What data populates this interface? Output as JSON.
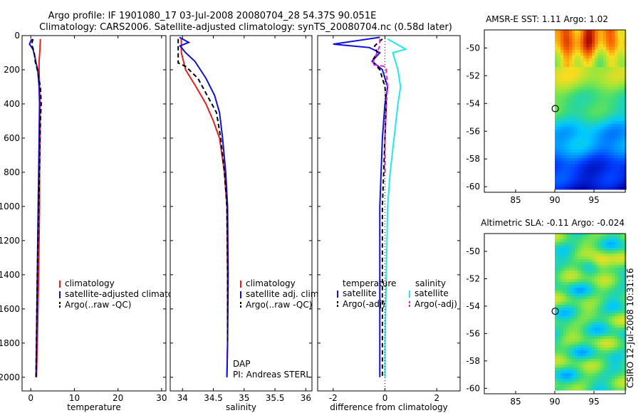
{
  "header": {
    "title_line1": "Argo profile: IF 1901080_17 03-Jul-2008 20080704_28 54.37S 90.051E",
    "title_line2": "Climatology: CARS2006. Satellite-adjusted climatology: synTS_20080704.nc (0.58d later)"
  },
  "colors": {
    "climatology": "#e8201c",
    "satellite": "#1010d8",
    "argo": "#000000",
    "cyan": "#22e8e8",
    "magenta": "#e020e0"
  },
  "chart_data": [
    {
      "id": "temperature",
      "type": "line",
      "xlabel": "temperature",
      "ylabel": "",
      "xlim": [
        -2,
        31
      ],
      "ylim": [
        0,
        2080
      ],
      "y_reversed": true,
      "xticks": [
        "0",
        "10",
        "20",
        "30"
      ],
      "xtick_values": [
        0,
        10,
        20,
        30
      ],
      "yticks": [
        "0",
        "200",
        "400",
        "600",
        "800",
        "1000",
        "1200",
        "1400",
        "1600",
        "1800",
        "2000"
      ],
      "ytick_values": [
        0,
        200,
        400,
        600,
        800,
        1000,
        1200,
        1400,
        1600,
        1800,
        2000
      ],
      "legend": [
        "climatology",
        "satellite-adjusted climatology",
        "Argo(..raw -QC)"
      ],
      "series": [
        {
          "name": "climatology",
          "color_key": "climatology",
          "dash": "",
          "points": [
            [
              2.2,
              20
            ],
            [
              2.1,
              80
            ],
            [
              1.9,
              150
            ],
            [
              1.9,
              200
            ],
            [
              2.0,
              300
            ],
            [
              2.1,
              400
            ],
            [
              2.1,
              600
            ],
            [
              2.0,
              800
            ],
            [
              2.0,
              1000
            ],
            [
              1.8,
              1400
            ],
            [
              1.5,
              1800
            ],
            [
              1.3,
              2000
            ]
          ]
        },
        {
          "name": "satellite-adjusted climatology",
          "color_key": "satellite",
          "dash": "",
          "points": [
            [
              0.2,
              20
            ],
            [
              -0.3,
              50
            ],
            [
              0.5,
              80
            ],
            [
              0.9,
              120
            ],
            [
              1.2,
              160
            ],
            [
              1.6,
              200
            ],
            [
              1.9,
              300
            ],
            [
              2.0,
              400
            ],
            [
              1.9,
              600
            ],
            [
              1.8,
              800
            ],
            [
              1.7,
              1000
            ],
            [
              1.5,
              1400
            ],
            [
              1.3,
              1800
            ],
            [
              1.2,
              2000
            ]
          ]
        },
        {
          "name": "Argo(..raw -QC)",
          "color_key": "argo",
          "dash": "6,4",
          "points": [
            [
              0.5,
              20
            ],
            [
              0.2,
              50
            ],
            [
              0.8,
              100
            ],
            [
              1.0,
              150
            ],
            [
              1.5,
              200
            ],
            [
              2.2,
              300
            ],
            [
              2.4,
              400
            ],
            [
              2.2,
              500
            ],
            [
              2.0,
              800
            ],
            [
              1.8,
              1000
            ],
            [
              1.5,
              1400
            ],
            [
              1.3,
              1800
            ],
            [
              1.2,
              2000
            ]
          ]
        }
      ]
    },
    {
      "id": "salinity",
      "type": "line",
      "xlabel": "salinity",
      "ylabel": "",
      "xlim": [
        33.8,
        36.1
      ],
      "ylim": [
        0,
        2080
      ],
      "y_reversed": true,
      "xticks": [
        "34",
        "34.5",
        "35",
        "35.5",
        "36"
      ],
      "xtick_values": [
        34,
        34.5,
        35,
        35.5,
        36
      ],
      "legend": [
        "climatology",
        "satellite adj. clim.",
        "Argo(..raw -QC)"
      ],
      "annotations": [
        "DAP",
        "PI: Andreas STERL"
      ],
      "series": [
        {
          "name": "climatology",
          "color_key": "climatology",
          "dash": "",
          "points": [
            [
              33.98,
              20
            ],
            [
              33.98,
              100
            ],
            [
              34.05,
              200
            ],
            [
              34.22,
              300
            ],
            [
              34.38,
              400
            ],
            [
              34.5,
              500
            ],
            [
              34.6,
              600
            ],
            [
              34.68,
              800
            ],
            [
              34.72,
              1000
            ],
            [
              34.73,
              1400
            ],
            [
              34.73,
              1800
            ],
            [
              34.72,
              2000
            ]
          ]
        },
        {
          "name": "satellite adj. clim.",
          "color_key": "satellite",
          "dash": "",
          "points": [
            [
              33.95,
              10
            ],
            [
              34.1,
              40
            ],
            [
              33.96,
              60
            ],
            [
              34.05,
              100
            ],
            [
              34.2,
              150
            ],
            [
              34.38,
              250
            ],
            [
              34.52,
              350
            ],
            [
              34.6,
              450
            ],
            [
              34.65,
              600
            ],
            [
              34.7,
              800
            ],
            [
              34.73,
              1000
            ],
            [
              34.74,
              1400
            ],
            [
              34.73,
              1800
            ],
            [
              34.72,
              2000
            ]
          ]
        },
        {
          "name": "Argo(..raw -QC)",
          "color_key": "argo",
          "dash": "6,4",
          "points": [
            [
              33.93,
              20
            ],
            [
              33.93,
              100
            ],
            [
              33.93,
              160
            ],
            [
              34.05,
              180
            ],
            [
              34.25,
              250
            ],
            [
              34.4,
              350
            ],
            [
              34.55,
              450
            ],
            [
              34.62,
              600
            ],
            [
              34.68,
              800
            ],
            [
              34.72,
              1000
            ],
            [
              34.73,
              1400
            ],
            [
              34.73,
              1800
            ]
          ]
        }
      ]
    },
    {
      "id": "difference",
      "type": "line",
      "xlabel": "difference from climatology",
      "ylabel": "",
      "xlim": [
        -2.6,
        2.9
      ],
      "ylim": [
        0,
        2080
      ],
      "y_reversed": true,
      "xticks": [
        "-2",
        "0",
        "2"
      ],
      "xtick_values": [
        -2,
        0,
        2
      ],
      "legend_left_title": "temperature",
      "legend_right_title": "salinity",
      "legend_left": [
        "satellite",
        "Argo(-adj)"
      ],
      "legend_right": [
        "satellite",
        "Argo(-adj)"
      ],
      "series": [
        {
          "name": "temperature satellite",
          "color_key": "satellite",
          "dash": "",
          "points": [
            [
              -0.2,
              10
            ],
            [
              -2.0,
              50
            ],
            [
              -0.6,
              70
            ],
            [
              -0.2,
              100
            ],
            [
              -0.5,
              150
            ],
            [
              -0.1,
              200
            ],
            [
              0.1,
              300
            ],
            [
              0.0,
              400
            ],
            [
              -0.1,
              600
            ],
            [
              -0.15,
              800
            ],
            [
              -0.2,
              1000
            ],
            [
              -0.2,
              1400
            ],
            [
              -0.2,
              1800
            ],
            [
              -0.2,
              2000
            ]
          ]
        },
        {
          "name": "temperature Argo(-adj)",
          "color_key": "argo",
          "dash": "6,4",
          "points": [
            [
              -0.1,
              20
            ],
            [
              -0.4,
              60
            ],
            [
              -0.3,
              100
            ],
            [
              -0.5,
              150
            ],
            [
              -0.2,
              200
            ],
            [
              0.0,
              300
            ],
            [
              0.05,
              400
            ],
            [
              0.0,
              600
            ],
            [
              -0.05,
              800
            ],
            [
              -0.1,
              1000
            ],
            [
              -0.1,
              1400
            ],
            [
              -0.1,
              1800
            ],
            [
              -0.1,
              2000
            ]
          ]
        },
        {
          "name": "salinity satellite",
          "color_key": "cyan",
          "dash": "",
          "points": [
            [
              0.1,
              20
            ],
            [
              0.8,
              80
            ],
            [
              0.3,
              100
            ],
            [
              0.4,
              150
            ],
            [
              0.5,
              200
            ],
            [
              0.6,
              300
            ],
            [
              0.5,
              400
            ],
            [
              0.35,
              600
            ],
            [
              0.2,
              800
            ],
            [
              0.1,
              1000
            ],
            [
              0.05,
              1400
            ],
            [
              0.0,
              1800
            ],
            [
              0.0,
              2000
            ]
          ]
        },
        {
          "name": "salinity Argo(-adj)",
          "color_key": "magenta",
          "dash": "6,4",
          "points": [
            [
              -0.2,
              20
            ],
            [
              -0.2,
              60
            ],
            [
              -0.5,
              170
            ],
            [
              0.0,
              180
            ],
            [
              0.05,
              200
            ],
            [
              0.1,
              300
            ],
            [
              0.05,
              400
            ],
            [
              0.0,
              600
            ],
            [
              0.0,
              800
            ]
          ]
        }
      ]
    }
  ],
  "maps": [
    {
      "id": "sst-map",
      "title": "AMSR-E SST: 1.11  Argo: 1.02",
      "xticks": [
        "85",
        "90",
        "95"
      ],
      "xtick_values": [
        85,
        90,
        95
      ],
      "yticks": [
        "-50",
        "-52",
        "-54",
        "-56",
        "-58",
        "-60"
      ],
      "ytick_values": [
        -50,
        -52,
        -54,
        -56,
        -58,
        -60
      ],
      "xlim": [
        81,
        99
      ],
      "ylim": [
        -60.4,
        -48.7
      ],
      "marker": {
        "lon": 90.051,
        "lat": -54.37
      },
      "palette": "sst"
    },
    {
      "id": "sla-map",
      "title": "Altimetric SLA: -0.11  Argo: -0.024",
      "xticks": [
        "85",
        "90",
        "95"
      ],
      "xtick_values": [
        85,
        90,
        95
      ],
      "yticks": [
        "-50",
        "-52",
        "-54",
        "-56",
        "-58",
        "-60"
      ],
      "ytick_values": [
        -50,
        -52,
        -54,
        -56,
        -58,
        -60
      ],
      "xlim": [
        81,
        99
      ],
      "ylim": [
        -60.4,
        -48.7
      ],
      "marker": {
        "lon": 90.051,
        "lat": -54.37
      },
      "palette": "sla"
    }
  ],
  "footer": {
    "stamp": "CSIRO 12-Jul-2008 10:31:16"
  }
}
